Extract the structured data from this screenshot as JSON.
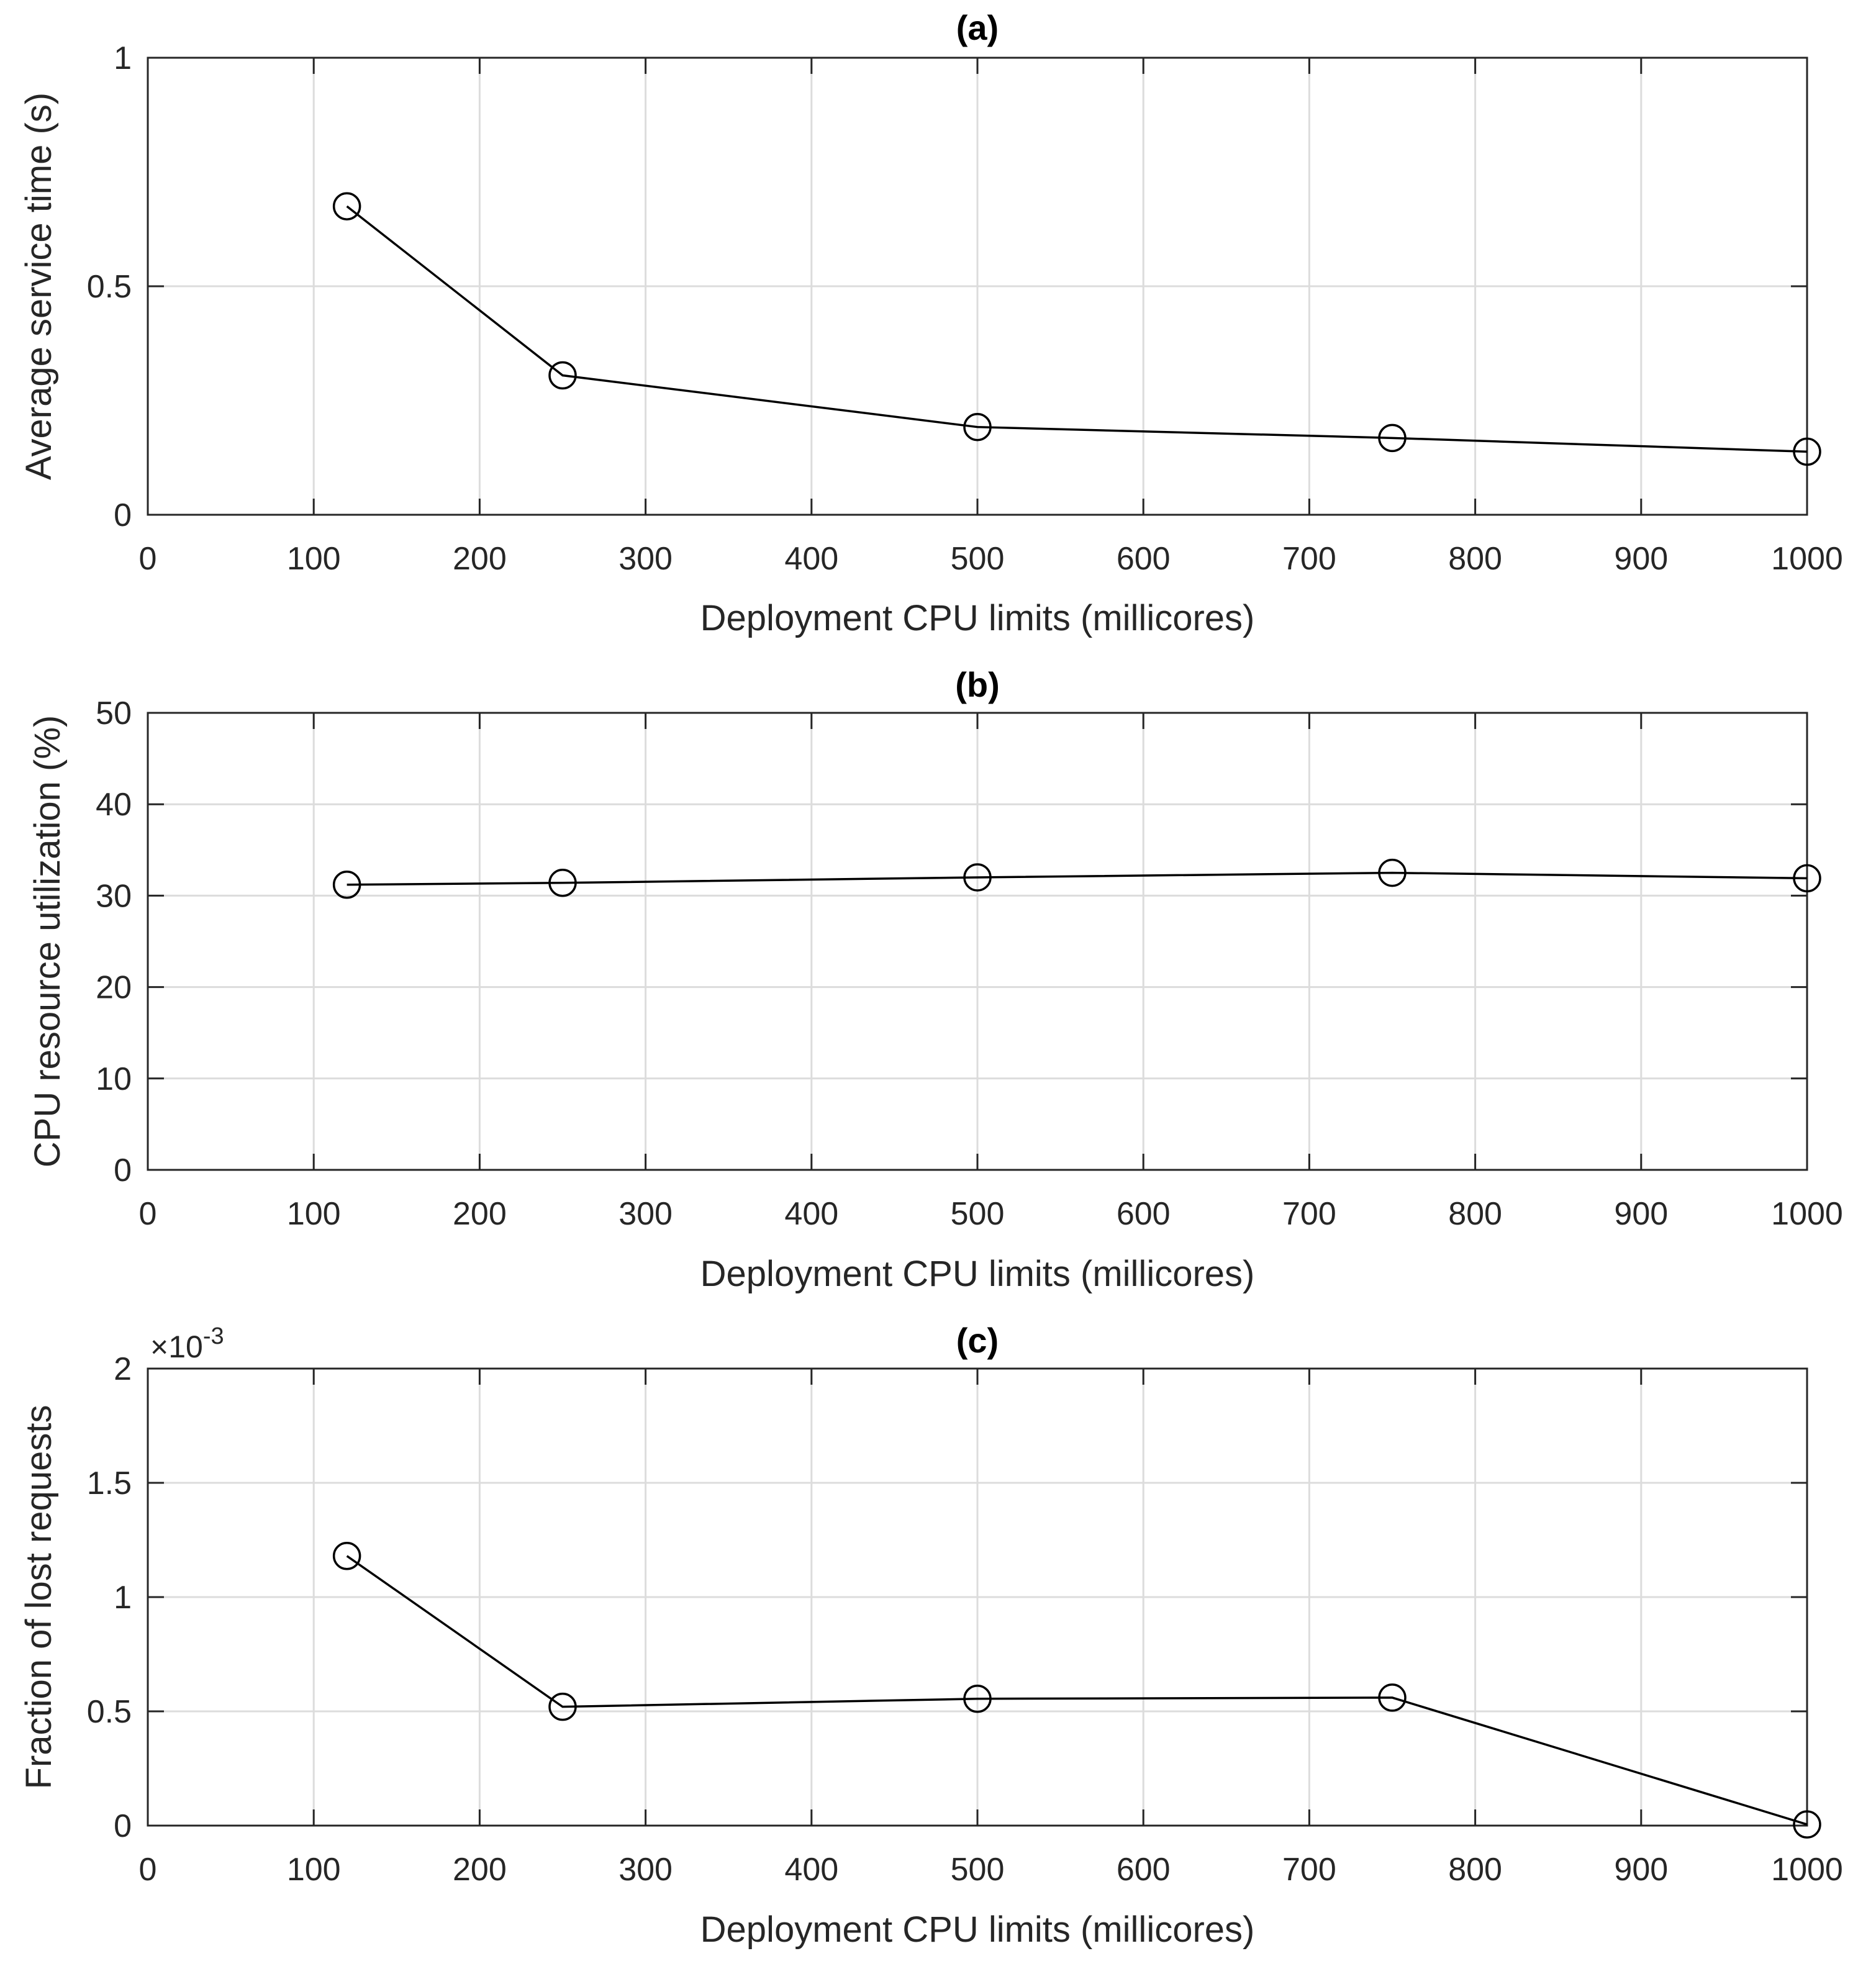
{
  "colors": {
    "background": "#ffffff",
    "grid": "#dcdcdc",
    "axis": "#262626",
    "series": "#000000"
  },
  "chart_data": [
    {
      "type": "line",
      "title": "(a)",
      "xlabel": "Deployment CPU limits (millicores)",
      "ylabel": "Average service time (s)",
      "xlim": [
        0,
        1000
      ],
      "ylim": [
        0,
        1
      ],
      "grid": true,
      "marker": "circle",
      "xticks": [
        0,
        100,
        200,
        300,
        400,
        500,
        600,
        700,
        800,
        900,
        1000
      ],
      "yticks": [
        0,
        0.5,
        1
      ],
      "x": [
        120,
        250,
        500,
        750,
        1000
      ],
      "series": [
        {
          "name": "Average service time",
          "values": [
            0.675,
            0.305,
            0.192,
            0.168,
            0.138
          ]
        }
      ]
    },
    {
      "type": "line",
      "title": "(b)",
      "xlabel": "Deployment CPU limits (millicores)",
      "ylabel": "CPU resource utilization (%)",
      "xlim": [
        0,
        1000
      ],
      "ylim": [
        0,
        50
      ],
      "grid": true,
      "marker": "circle",
      "xticks": [
        0,
        100,
        200,
        300,
        400,
        500,
        600,
        700,
        800,
        900,
        1000
      ],
      "yticks": [
        0,
        10,
        20,
        30,
        40,
        50
      ],
      "x": [
        120,
        250,
        500,
        750,
        1000
      ],
      "series": [
        {
          "name": "CPU resource utilization",
          "values": [
            31.2,
            31.4,
            32.0,
            32.5,
            31.9
          ]
        }
      ]
    },
    {
      "type": "line",
      "title": "(c)",
      "xlabel": "Deployment CPU limits (millicores)",
      "ylabel": "Fraction of lost requests",
      "exponent_label": "×10",
      "exponent_power": "-3",
      "xlim": [
        0,
        1000
      ],
      "ylim": [
        0,
        2
      ],
      "grid": true,
      "marker": "circle",
      "xticks": [
        0,
        100,
        200,
        300,
        400,
        500,
        600,
        700,
        800,
        900,
        1000
      ],
      "yticks": [
        0,
        0.5,
        1,
        1.5,
        2
      ],
      "x": [
        120,
        250,
        500,
        750,
        1000
      ],
      "series": [
        {
          "name": "Fraction of lost requests (×10^-3)",
          "values": [
            1.18,
            0.52,
            0.555,
            0.56,
            0.005
          ]
        }
      ]
    }
  ]
}
